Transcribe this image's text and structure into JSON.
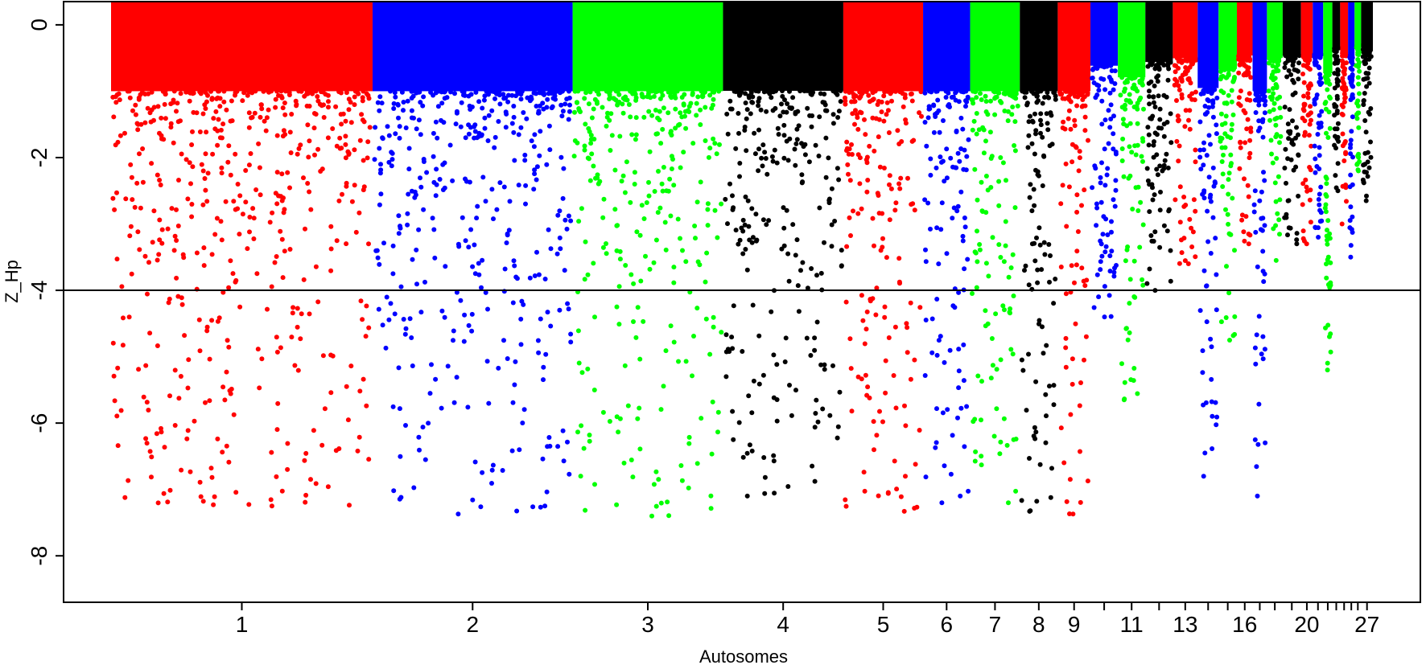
{
  "chart_data": {
    "type": "scatter",
    "subtype": "manhattan",
    "title": "",
    "xlabel": "Autosomes",
    "ylabel": "Z_Hp",
    "ylim": [
      -8.7,
      0.35
    ],
    "yticks": [
      0,
      -2,
      -4,
      -6,
      -8
    ],
    "threshold": -4,
    "grid": false,
    "legend": "none",
    "colors": [
      "#ff0000",
      "#0000ff",
      "#00ff00",
      "#000000"
    ],
    "x_tick_labels": [
      "1",
      "2",
      "3",
      "4",
      "5",
      "6",
      "7",
      "8",
      "9",
      "11",
      "13",
      "16",
      "20",
      "27"
    ],
    "chromosomes": [
      {
        "chr": 1,
        "label": "1",
        "length": 100,
        "color": "#ff0000",
        "min": -7.25
      },
      {
        "chr": 2,
        "label": "2",
        "length": 76.5,
        "color": "#0000ff",
        "min": -7.37
      },
      {
        "chr": 3,
        "label": "3",
        "length": 57.5,
        "color": "#00ff00",
        "min": -7.4
      },
      {
        "chr": 4,
        "label": "4",
        "length": 46,
        "color": "#000000",
        "min": -7.1
      },
      {
        "chr": 5,
        "label": "5",
        "length": 30.5,
        "color": "#ff0000",
        "min": -7.33
      },
      {
        "chr": 6,
        "label": "6",
        "length": 18,
        "color": "#0000ff",
        "min": -7.2
      },
      {
        "chr": 7,
        "label": "7",
        "length": 19,
        "color": "#00ff00",
        "min": -7.2
      },
      {
        "chr": 8,
        "label": "8",
        "length": 14.5,
        "color": "#000000",
        "min": -7.33
      },
      {
        "chr": 9,
        "label": "9",
        "length": 12.5,
        "color": "#ff0000",
        "min": -7.37
      },
      {
        "chr": 10,
        "label": "",
        "length": 10.5,
        "color": "#0000ff",
        "min": -4.4
      },
      {
        "chr": 11,
        "label": "11",
        "length": 10.5,
        "color": "#00ff00",
        "min": -5.65
      },
      {
        "chr": 12,
        "label": "",
        "length": 10.5,
        "color": "#000000",
        "min": -4.0
      },
      {
        "chr": 13,
        "label": "13",
        "length": 9.5,
        "color": "#ff0000",
        "min": -3.6
      },
      {
        "chr": 14,
        "label": "",
        "length": 8,
        "color": "#0000ff",
        "min": -6.8
      },
      {
        "chr": 15,
        "label": "",
        "length": 7,
        "color": "#00ff00",
        "min": -4.75
      },
      {
        "chr": 16,
        "label": "16",
        "length": 6,
        "color": "#ff0000",
        "min": -3.3
      },
      {
        "chr": 17,
        "label": "",
        "length": 5.5,
        "color": "#0000ff",
        "min": -7.1
      },
      {
        "chr": 18,
        "label": "",
        "length": 6,
        "color": "#00ff00",
        "min": -3.55
      },
      {
        "chr": 19,
        "label": "",
        "length": 7,
        "color": "#000000",
        "min": -3.3
      },
      {
        "chr": 20,
        "label": "20",
        "length": 4.5,
        "color": "#ff0000",
        "min": -3.3
      },
      {
        "chr": 21,
        "label": "",
        "length": 4,
        "color": "#0000ff",
        "min": -3.2
      },
      {
        "chr": 22,
        "label": "",
        "length": 3.5,
        "color": "#00ff00",
        "min": -5.2
      },
      {
        "chr": 23,
        "label": "",
        "length": 3,
        "color": "#000000",
        "min": -2.5
      },
      {
        "chr": 24,
        "label": "",
        "length": 3,
        "color": "#ff0000",
        "min": -3.0
      },
      {
        "chr": 25,
        "label": "",
        "length": 2.5,
        "color": "#0000ff",
        "min": -3.5
      },
      {
        "chr": 26,
        "label": "",
        "length": 2.5,
        "color": "#00ff00",
        "min": -2.2
      },
      {
        "chr": 27,
        "label": "27",
        "length": 4.5,
        "color": "#000000",
        "min": -2.65
      }
    ]
  }
}
